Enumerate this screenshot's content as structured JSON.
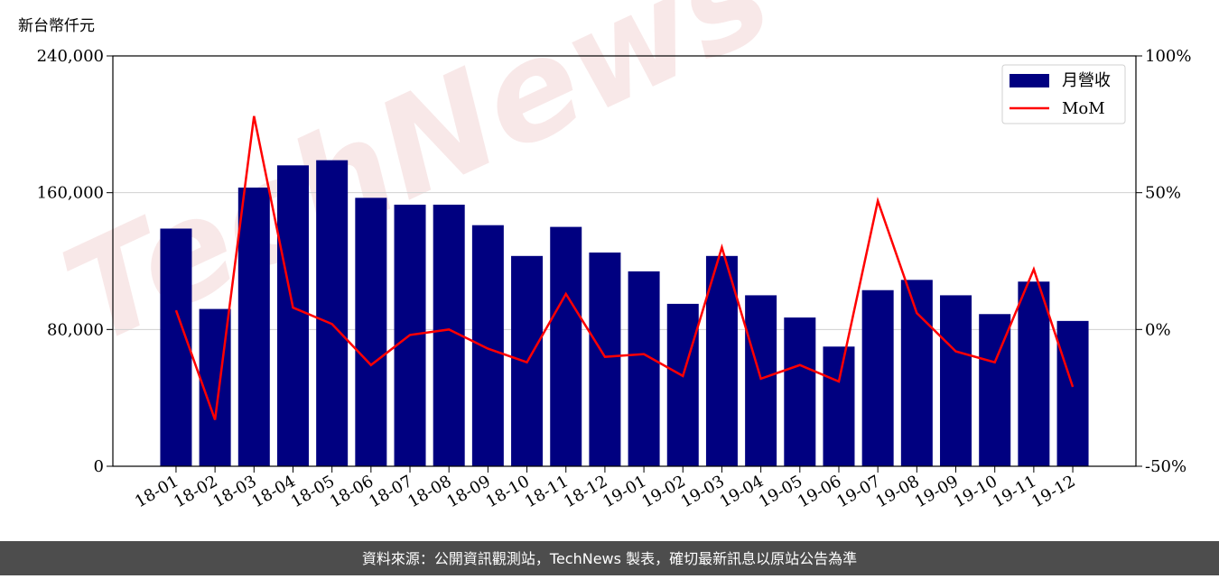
{
  "chart_data": {
    "type": "bar_line",
    "y_label": "新台幣仟元",
    "watermark": "TechNews",
    "footer": "資料來源：公開資訊觀測站，TechNews 製表，確切最新訊息以原站公告為準",
    "categories": [
      "18-01",
      "18-02",
      "18-03",
      "18-04",
      "18-05",
      "18-06",
      "18-07",
      "18-08",
      "18-09",
      "18-10",
      "18-11",
      "18-12",
      "19-01",
      "19-02",
      "19-03",
      "19-04",
      "19-05",
      "19-06",
      "19-07",
      "19-08",
      "19-09",
      "19-10",
      "19-11",
      "19-12"
    ],
    "series": [
      {
        "name": "月營收",
        "color": "#000080",
        "type": "bar",
        "values": [
          139000,
          92000,
          163000,
          176000,
          179000,
          157000,
          153000,
          153000,
          141000,
          123000,
          140000,
          125000,
          114000,
          95000,
          123000,
          100000,
          87000,
          70000,
          103000,
          109000,
          100000,
          89000,
          108000,
          85000
        ]
      },
      {
        "name": "MoM",
        "color": "#ff0000",
        "type": "line",
        "axis": "y2",
        "values": [
          7,
          -33,
          78,
          8,
          2,
          -13,
          -2,
          0,
          -7,
          -12,
          13,
          -10,
          -9,
          -17,
          30,
          -18,
          -13,
          -19,
          47,
          6,
          -8,
          -12,
          22,
          -21
        ]
      }
    ],
    "ylim": [
      0,
      240000
    ],
    "yticks": [
      0,
      {
        "value": 80000,
        "label": "80,000"
      },
      {
        "value": 160000,
        "label": "160,000"
      },
      {
        "value": 240000,
        "label": "240,000"
      }
    ],
    "y2lim": [
      -50,
      100
    ],
    "y2ticks": [
      {
        "value": -50,
        "label": "-50%"
      },
      {
        "value": 0,
        "label": "0%"
      },
      {
        "value": 50,
        "label": "50%"
      },
      {
        "value": 100,
        "label": "100%"
      }
    ],
    "grid": true,
    "legend": "upper right"
  }
}
